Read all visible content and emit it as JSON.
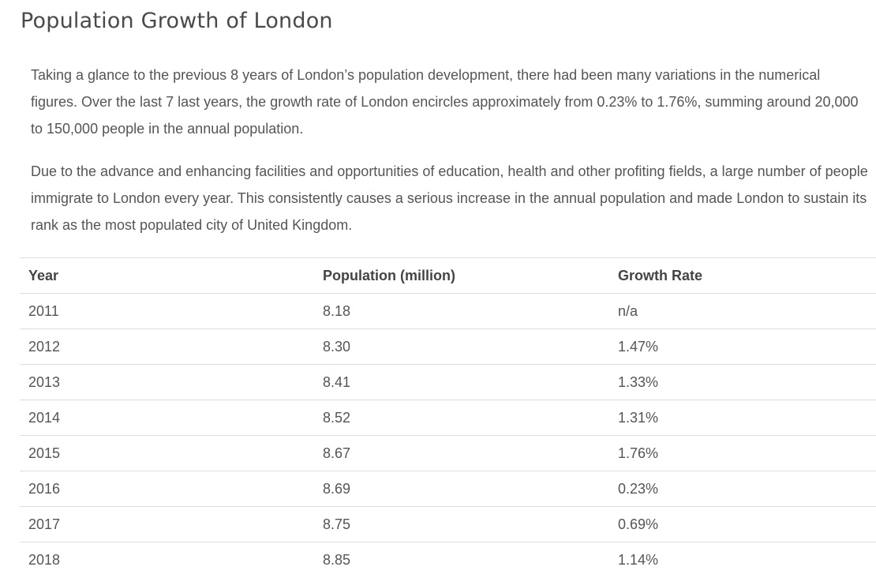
{
  "title": "Population Growth of London",
  "paragraphs": [
    "Taking a glance to the previous 8 years of London’s population development, there had been many variations in the numerical figures. Over the last 7 last years, the growth rate of London encircles approximately from 0.23% to 1.76%, summing around 20,000 to 150,000 people in the annual population.",
    "Due to the advance and enhancing facilities and opportunities of education, health and other profiting fields, a large number of people immigrate to London every year. This consistently causes a serious increase in the annual population and made London to sustain its rank as the most populated city of United Kingdom."
  ],
  "table": {
    "headers": [
      "Year",
      "Population (million)",
      "Growth Rate"
    ],
    "rows": [
      [
        "2011",
        "8.18",
        "n/a"
      ],
      [
        "2012",
        "8.30",
        "1.47%"
      ],
      [
        "2013",
        "8.41",
        "1.33%"
      ],
      [
        "2014",
        "8.52",
        "1.31%"
      ],
      [
        "2015",
        "8.67",
        "1.76%"
      ],
      [
        "2016",
        "8.69",
        "0.23%"
      ],
      [
        "2017",
        "8.75",
        "0.69%"
      ],
      [
        "2018",
        "8.85",
        "1.14%"
      ]
    ]
  }
}
